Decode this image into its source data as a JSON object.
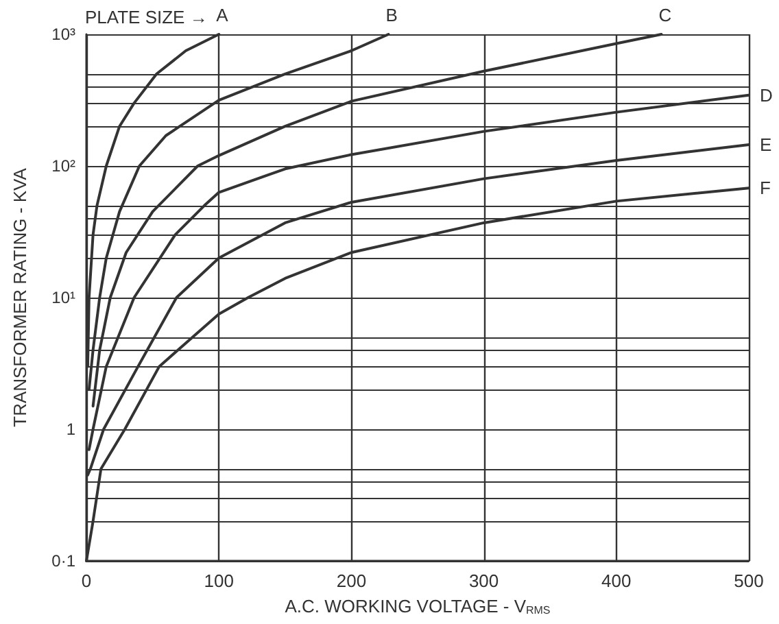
{
  "chart_data": {
    "type": "line",
    "xlabel": "A.C. WORKING VOLTAGE - V$_{RMS}$",
    "ylabel": "TRANSFORMER RATING - KVA",
    "annotations": [
      "PLATE SIZE →"
    ],
    "log": "y",
    "grid": true,
    "legend": false,
    "marker": "none",
    "line_style": "solid",
    "xlim": [
      0,
      500
    ],
    "xticks": [
      0,
      100,
      200,
      300,
      400,
      500
    ],
    "ylim": [
      0.1,
      1000
    ],
    "yticks": [
      {
        "value": 0.1,
        "label": "0·1"
      },
      {
        "value": 0.2,
        "label": null
      },
      {
        "value": 0.3,
        "label": null
      },
      {
        "value": 0.4,
        "label": null
      },
      {
        "value": 0.5,
        "label": null
      },
      1,
      {
        "value": 2,
        "label": null
      },
      {
        "value": 3,
        "label": null
      },
      {
        "value": 4,
        "label": null
      },
      {
        "value": 5,
        "label": null
      },
      {
        "value": 10,
        "label": "10¹"
      },
      {
        "value": 20,
        "label": null
      },
      {
        "value": 30,
        "label": null
      },
      {
        "value": 40,
        "label": null
      },
      {
        "value": 50,
        "label": null
      },
      {
        "value": 100,
        "label": "10²"
      },
      {
        "value": 200,
        "label": null
      },
      {
        "value": 300,
        "label": null
      },
      {
        "value": 400,
        "label": null
      },
      {
        "value": 500,
        "label": null
      },
      {
        "value": 1000,
        "label": "10³"
      }
    ],
    "series": [
      {
        "name": "A",
        "color": "#333333",
        "x": [
          1,
          2,
          5,
          8,
          15,
          25,
          36,
          53,
          75,
          100
        ],
        "values": [
          3,
          10,
          30,
          50,
          100,
          200,
          300,
          500,
          750,
          1000
        ]
      },
      {
        "name": "B",
        "color": "#333333",
        "x": [
          2,
          5,
          10,
          15,
          25,
          40,
          60,
          100,
          150,
          200,
          228
        ],
        "values": [
          2,
          4,
          10,
          20,
          45,
          100,
          170,
          316,
          500,
          750,
          1000
        ]
      },
      {
        "name": "C",
        "color": "#333333",
        "x": [
          5,
          10,
          18,
          30,
          50,
          84,
          100,
          150,
          200,
          300,
          400,
          434
        ],
        "values": [
          1.5,
          4,
          10,
          22,
          45,
          100,
          120,
          200,
          310,
          525,
          850,
          1000
        ]
      },
      {
        "name": "D",
        "color": "#333333",
        "x": [
          2,
          5,
          15,
          36,
          67,
          89,
          100,
          150,
          200,
          300,
          400,
          500
        ],
        "values": [
          0.7,
          1,
          3,
          10,
          30,
          50,
          63,
          95,
          122,
          183,
          256,
          345
        ]
      },
      {
        "name": "E",
        "color": "#333333",
        "x": [
          1,
          3,
          13,
          39,
          68,
          100,
          150,
          200,
          300,
          400,
          500
        ],
        "values": [
          0.45,
          0.5,
          1,
          3,
          10,
          20,
          37,
          53,
          80,
          110,
          145
        ]
      },
      {
        "name": "F",
        "color": "#333333",
        "x": [
          0,
          5,
          11,
          29,
          55,
          100,
          122,
          150,
          200,
          300,
          400,
          500
        ],
        "values": [
          0.1,
          0.2,
          0.5,
          1,
          3,
          7.5,
          10,
          14,
          22,
          37,
          54,
          68
        ]
      }
    ]
  }
}
